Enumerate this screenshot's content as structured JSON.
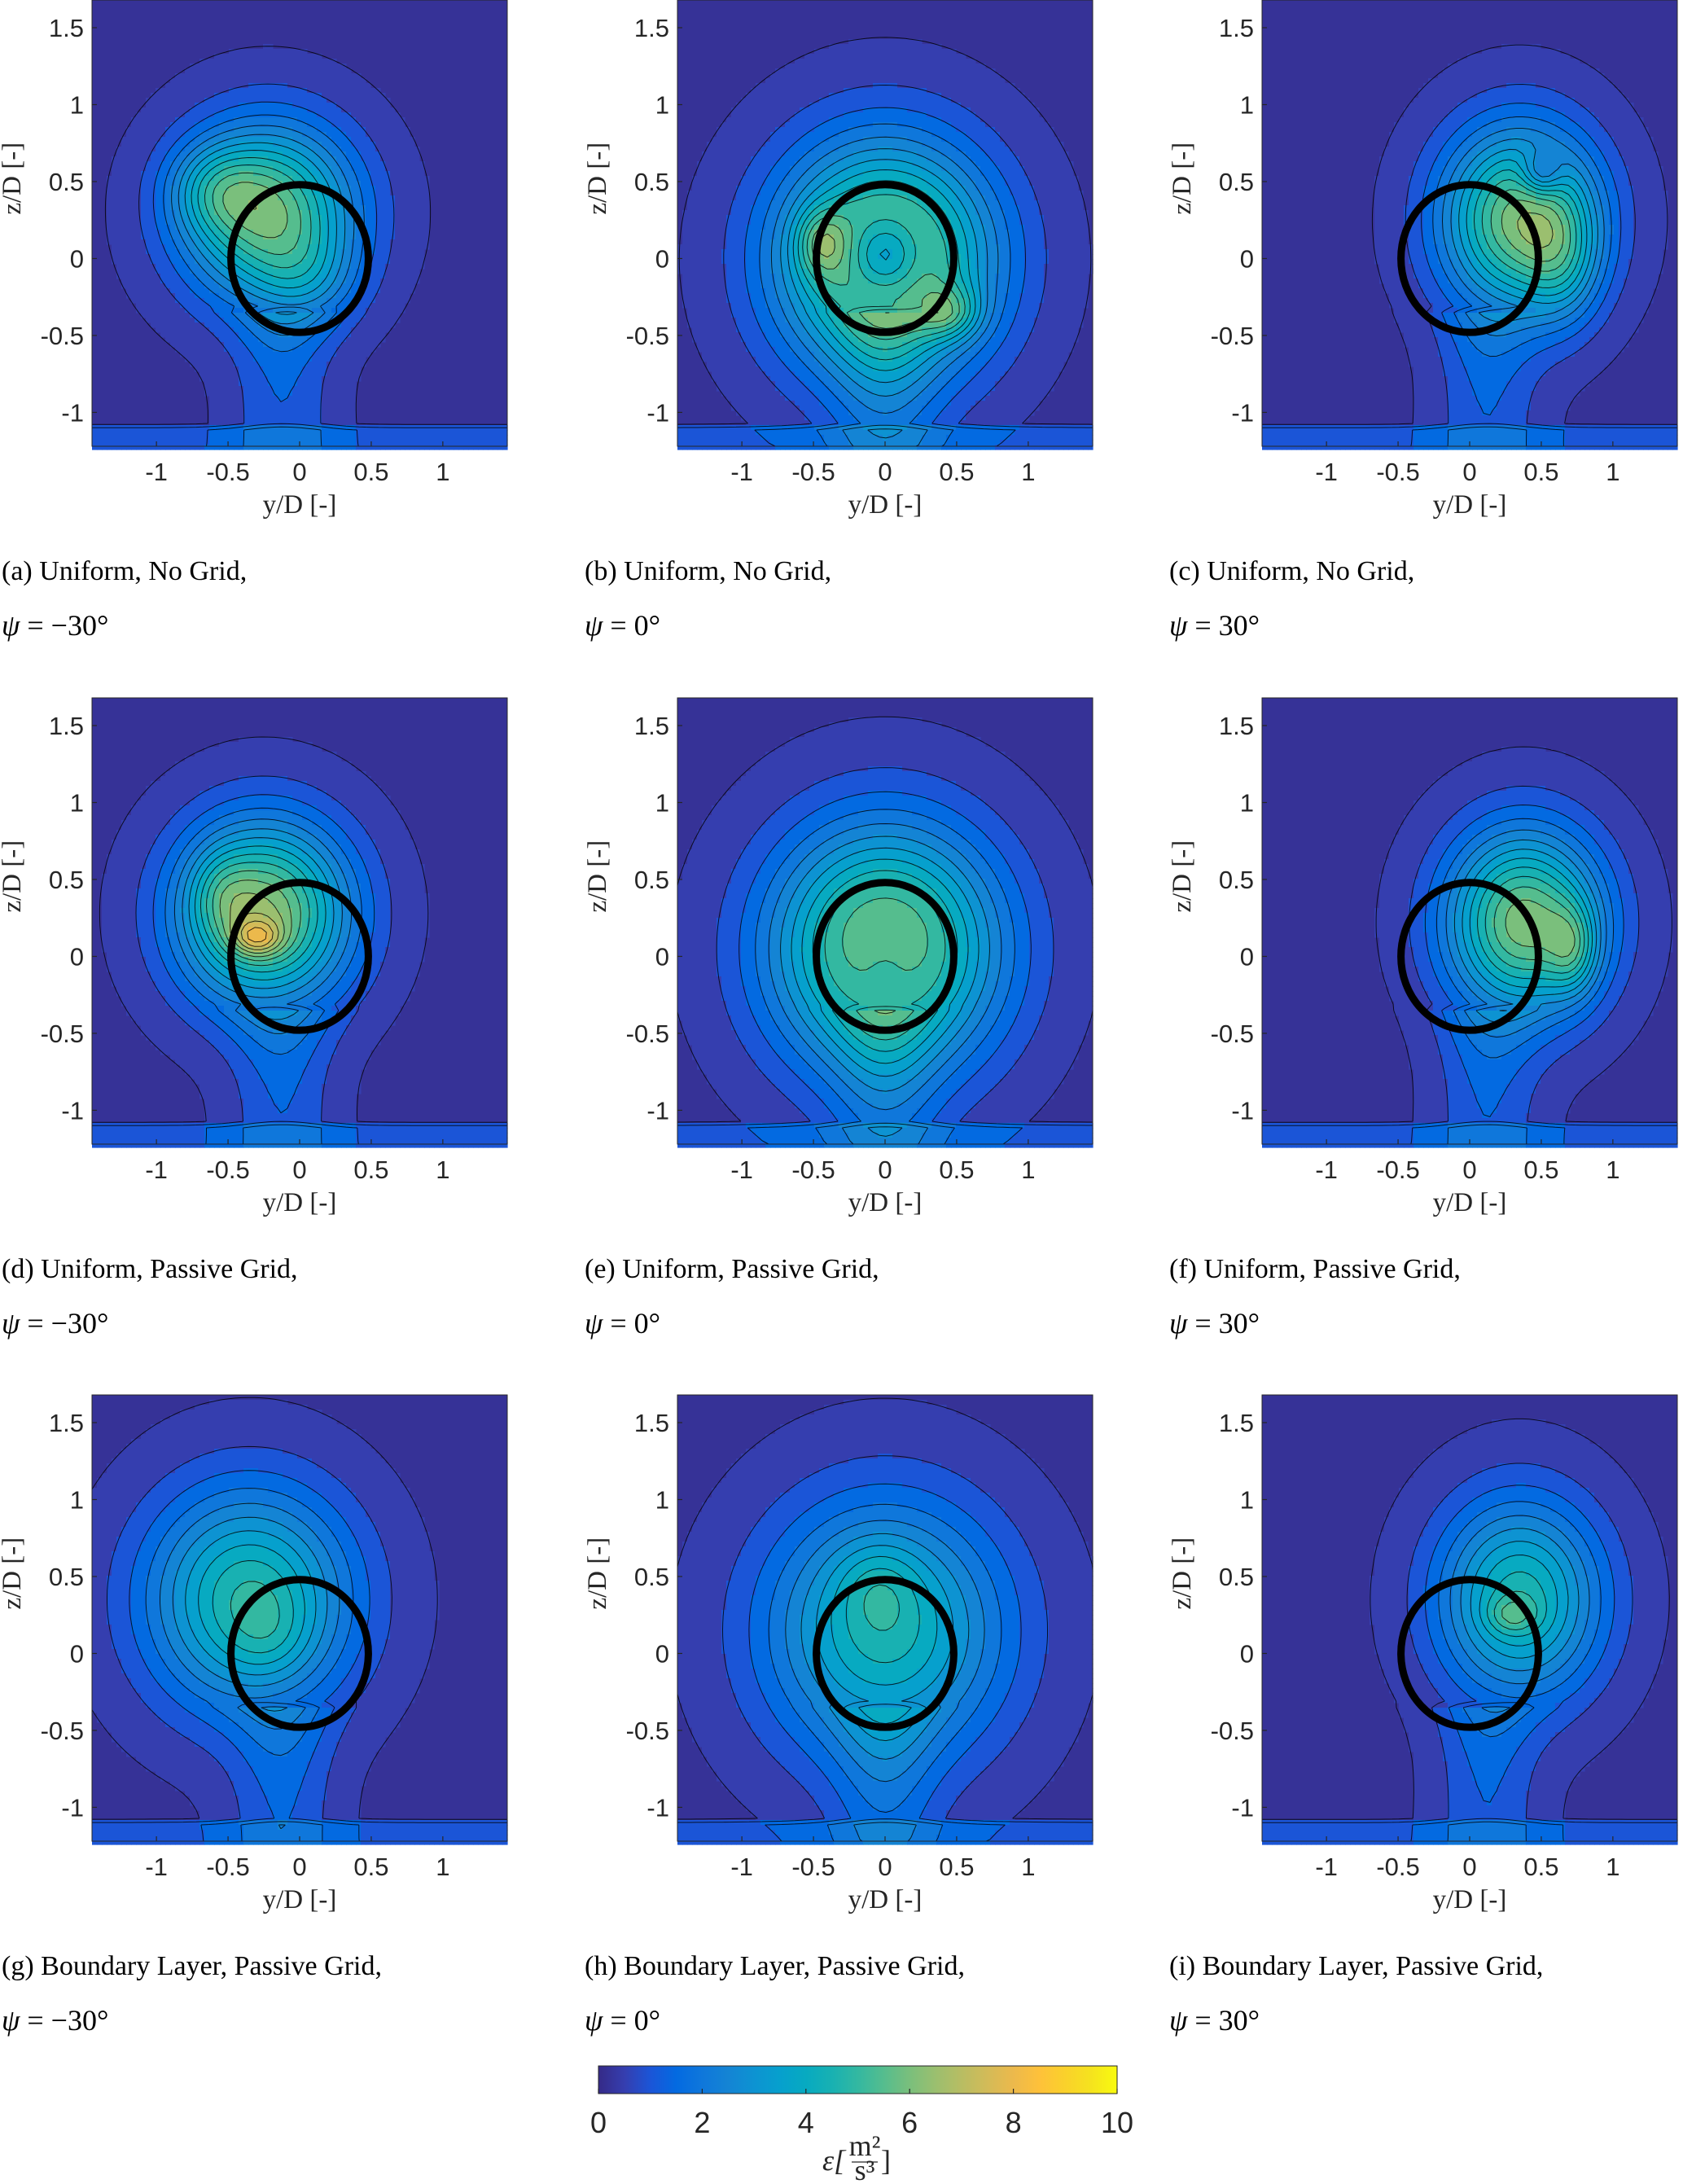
{
  "chart_data": {
    "type": "heatmap",
    "description_variable": "turbulent dissipation rate",
    "xlabel": "y/D [-]",
    "ylabel": "z/D [-]",
    "xlim": [
      -1.45,
      1.45
    ],
    "ylim": [
      -1.22,
      1.68
    ],
    "xticks": [
      "-1",
      "-0.5",
      "0",
      "0.5",
      "1"
    ],
    "xtick_values": [
      -1,
      -0.5,
      0,
      0.5,
      1
    ],
    "yticks": [
      "-1",
      "-0.5",
      "0",
      "0.5",
      "1",
      "1.5"
    ],
    "ytick_values": [
      -1,
      -0.5,
      0,
      0.5,
      1,
      1.5
    ],
    "rotor_circle": {
      "center": [
        0,
        0
      ],
      "radius": 0.48
    },
    "colorbar": {
      "ticks": [
        "0",
        "2",
        "4",
        "6",
        "8",
        "10"
      ],
      "tick_values": [
        0,
        2,
        4,
        6,
        8,
        10
      ],
      "range": [
        0,
        10
      ],
      "colormap": "parula",
      "label_prefix": "ε[",
      "label_num": "m²",
      "label_den": "s³",
      "label_suffix": "]"
    },
    "panels": [
      {
        "id": "a",
        "caption": "(a) Uniform, No Grid,",
        "psi_symbol": "ψ",
        "psi_value": " = −30°",
        "yaw_deg": -30,
        "blobs": [
          {
            "y": -0.22,
            "z": 0.3,
            "sy": 0.42,
            "sz": 0.4,
            "amp": 5.7
          },
          {
            "y": -0.6,
            "z": 0.45,
            "sy": 0.22,
            "sz": 0.2,
            "amp": 1.6
          },
          {
            "y": 0.05,
            "z": -0.15,
            "sy": 0.25,
            "sz": 0.22,
            "amp": 1.3
          }
        ]
      },
      {
        "id": "b",
        "caption": "(b) Uniform, No Grid,",
        "psi_symbol": "ψ",
        "psi_value": " = 0°",
        "yaw_deg": 0,
        "blobs": [
          {
            "y": 0,
            "z": 0,
            "sy": 0.52,
            "sz": 0.52,
            "amp": 6.8
          },
          {
            "y": 0,
            "z": 0.02,
            "sy": 0.18,
            "sz": 0.18,
            "amp": -3.2
          },
          {
            "y": 0.45,
            "z": -0.35,
            "sy": 0.15,
            "sz": 0.12,
            "amp": 2.0
          },
          {
            "y": -0.45,
            "z": 0.1,
            "sy": 0.12,
            "sz": 0.15,
            "amp": 1.8
          }
        ]
      },
      {
        "id": "c",
        "caption": "(c) Uniform, No Grid,",
        "psi_symbol": "ψ",
        "psi_value": " = 30°",
        "yaw_deg": 30,
        "blobs": [
          {
            "y": 0.35,
            "z": 0.25,
            "sy": 0.38,
            "sz": 0.42,
            "amp": 5.9
          },
          {
            "y": 0.65,
            "z": 0.0,
            "sy": 0.18,
            "sz": 0.3,
            "amp": 1.7
          },
          {
            "y": 0.5,
            "z": 0.55,
            "sy": 0.1,
            "sz": 0.1,
            "amp": -2.0
          }
        ]
      },
      {
        "id": "d",
        "caption": "(d) Uniform, Passive Grid,",
        "psi_symbol": "ψ",
        "psi_value": " = −30°",
        "yaw_deg": -30,
        "blobs": [
          {
            "y": -0.25,
            "z": 0.28,
            "sy": 0.42,
            "sz": 0.42,
            "amp": 6.2
          },
          {
            "y": -0.3,
            "z": 0.12,
            "sy": 0.12,
            "sz": 0.08,
            "amp": 2.2
          },
          {
            "y": -0.55,
            "z": 0.4,
            "sy": 0.15,
            "sz": 0.2,
            "amp": 1.0
          }
        ]
      },
      {
        "id": "e",
        "caption": "(e) Uniform, Passive Grid,",
        "psi_symbol": "ψ",
        "psi_value": " = 0°",
        "yaw_deg": 0,
        "blobs": [
          {
            "y": 0,
            "z": 0.05,
            "sy": 0.55,
            "sz": 0.55,
            "amp": 6.4
          },
          {
            "y": 0,
            "z": 0.0,
            "sy": 0.2,
            "sz": 0.2,
            "amp": -1.2
          }
        ]
      },
      {
        "id": "f",
        "caption": "(f) Uniform, Passive Grid,",
        "psi_symbol": "ψ",
        "psi_value": " = 30°",
        "yaw_deg": 30,
        "blobs": [
          {
            "y": 0.38,
            "z": 0.22,
            "sy": 0.38,
            "sz": 0.42,
            "amp": 6.0
          },
          {
            "y": 0.72,
            "z": 0.05,
            "sy": 0.12,
            "sz": 0.2,
            "amp": 2.0
          }
        ]
      },
      {
        "id": "g",
        "caption": "(g) Boundary Layer, Passive Grid,",
        "psi_symbol": "ψ",
        "psi_value": " = −30°",
        "yaw_deg": -30,
        "blobs": [
          {
            "y": -0.35,
            "z": 0.35,
            "sy": 0.5,
            "sz": 0.5,
            "amp": 4.7
          },
          {
            "y": -0.2,
            "z": 0.1,
            "sy": 0.2,
            "sz": 0.2,
            "amp": 0.6
          }
        ]
      },
      {
        "id": "h",
        "caption": "(h) Boundary Layer, Passive Grid,",
        "psi_symbol": "ψ",
        "psi_value": " = 0°",
        "yaw_deg": 0,
        "blobs": [
          {
            "y": 0,
            "z": 0.15,
            "sy": 0.58,
            "sz": 0.58,
            "amp": 4.4
          },
          {
            "y": -0.05,
            "z": 0.45,
            "sy": 0.2,
            "sz": 0.2,
            "amp": 0.8
          }
        ]
      },
      {
        "id": "i",
        "caption": "(i) Boundary Layer, Passive Grid,",
        "psi_symbol": "ψ",
        "psi_value": " = 30°",
        "yaw_deg": 30,
        "blobs": [
          {
            "y": 0.35,
            "z": 0.35,
            "sy": 0.4,
            "sz": 0.45,
            "amp": 4.5
          },
          {
            "y": 0.3,
            "z": 0.25,
            "sy": 0.12,
            "sz": 0.08,
            "amp": 1.2
          }
        ]
      }
    ]
  },
  "colors": {
    "background_level": "#3e26a8",
    "contour_line": "#000000",
    "circle": "#000000"
  }
}
